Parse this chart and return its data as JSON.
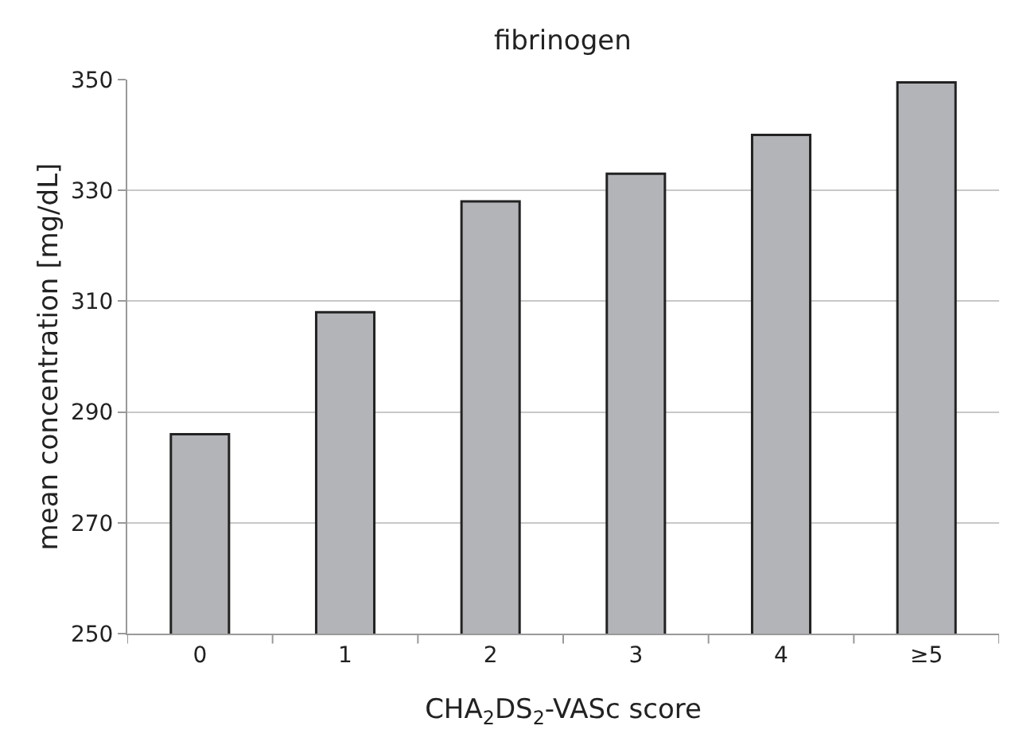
{
  "chart_data": {
    "type": "bar",
    "title": "fibrinogen",
    "xlabel": "CHA$_{2}$DS$_{2}$-VASc score",
    "ylabel": "mean concentration [mg/dL]",
    "categories": [
      "0",
      "1",
      "2",
      "3",
      "4",
      "≥5"
    ],
    "values": [
      286,
      308,
      328,
      333,
      340,
      349.5
    ],
    "color": "#b3b4b8",
    "ylim": [
      250,
      350
    ],
    "yticks": [
      250,
      270,
      290,
      310,
      330,
      350
    ],
    "grid": "y"
  }
}
